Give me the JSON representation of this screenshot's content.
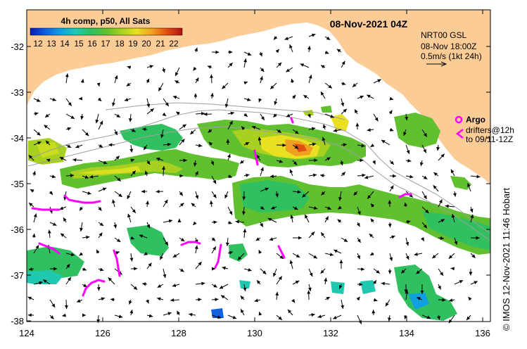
{
  "map": {
    "title": "08-Nov-2021 04Z",
    "credit": "© IMOS 12-Nov-2021 11:46 Hobart",
    "colorbar": {
      "title": "4h comp, p50, All Sats",
      "ticks": [
        "12",
        "13",
        "14",
        "15",
        "16",
        "17",
        "18",
        "19",
        "20",
        "21",
        "22"
      ],
      "colors": [
        "#0a1ab0",
        "#1060e0",
        "#10a0e0",
        "#20c8b0",
        "#30c060",
        "#60c030",
        "#a8d020",
        "#e8e020",
        "#f0a020",
        "#e05010",
        "#b01010"
      ]
    },
    "current_legend": {
      "source": "NRT00 GSL",
      "time": "08-Nov 18:00Z",
      "scale": "0.5m/s (1kt 24h)"
    },
    "argo_legend": {
      "argo_label": "Argo",
      "drifters_label": "drifters@12h",
      "range_label": "to 09/11-12Z"
    },
    "axes": {
      "lat_labels": [
        "-32",
        "-33",
        "-34",
        "-35",
        "-36",
        "-37",
        "-38"
      ],
      "lon_labels": [
        "124",
        "126",
        "128",
        "130",
        "132",
        "134",
        "136"
      ]
    },
    "colors": {
      "land": "#fccc96",
      "arrow": "#000000",
      "drifter": "#ff00ff",
      "bathy": "#a0a0a0"
    }
  }
}
